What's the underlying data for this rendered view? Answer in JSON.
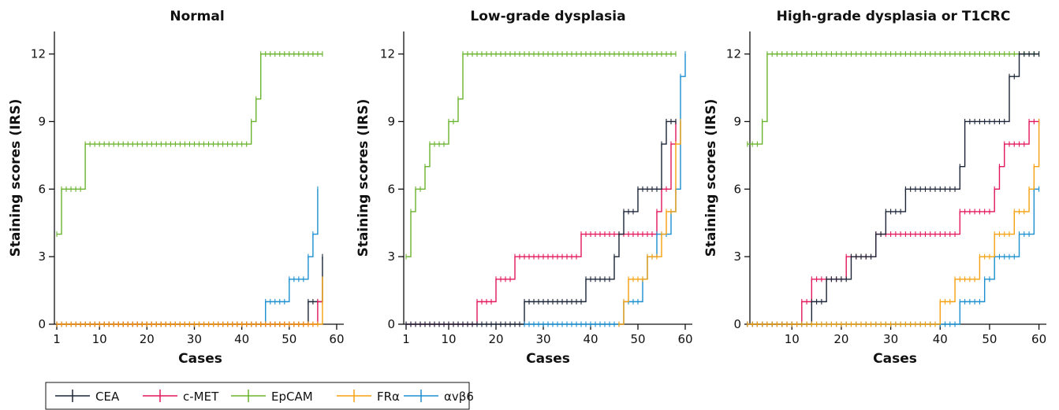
{
  "legend": {
    "placement": "bottom-left",
    "entries": [
      {
        "label": "CEA",
        "color": "#1b2537"
      },
      {
        "label": "c-MET",
        "color": "#e2175c"
      },
      {
        "label": "EpCAM",
        "color": "#6ab32e"
      },
      {
        "label": "FRα",
        "color": "#f5a00f"
      },
      {
        "label": "αvβ6",
        "color": "#1b8fd0"
      }
    ]
  },
  "chart_data": [
    {
      "type": "line",
      "title": "Normal",
      "xlabel": "Cases",
      "ylabel": "Staining scores (IRS)",
      "xlim": [
        0.5,
        61.5
      ],
      "ylim": [
        0,
        13
      ],
      "xticks": [
        1,
        10,
        20,
        30,
        40,
        50,
        60
      ],
      "yticks": [
        0,
        3,
        6,
        9,
        12
      ],
      "grid": false,
      "series": [
        {
          "name": "EpCAM",
          "color": "#6ab32e",
          "x_start": 1,
          "values": [
            4,
            6,
            6,
            6,
            6,
            6,
            8,
            8,
            8,
            8,
            8,
            8,
            8,
            8,
            8,
            8,
            8,
            8,
            8,
            8,
            8,
            8,
            8,
            8,
            8,
            8,
            8,
            8,
            8,
            8,
            8,
            8,
            8,
            8,
            8,
            8,
            8,
            8,
            8,
            8,
            8,
            9,
            10,
            12,
            12,
            12,
            12,
            12,
            12,
            12,
            12,
            12,
            12,
            12,
            12,
            12,
            12
          ]
        },
        {
          "name": "αvβ6",
          "color": "#1b8fd0",
          "x_start": 1,
          "values": [
            0,
            0,
            0,
            0,
            0,
            0,
            0,
            0,
            0,
            0,
            0,
            0,
            0,
            0,
            0,
            0,
            0,
            0,
            0,
            0,
            0,
            0,
            0,
            0,
            0,
            0,
            0,
            0,
            0,
            0,
            0,
            0,
            0,
            0,
            0,
            0,
            0,
            0,
            0,
            0,
            0,
            0,
            0,
            0,
            1,
            1,
            1,
            1,
            1,
            2,
            2,
            2,
            2,
            3,
            4,
            6
          ]
        },
        {
          "name": "CEA",
          "color": "#1b2537",
          "x_start": 1,
          "values": [
            0,
            0,
            0,
            0,
            0,
            0,
            0,
            0,
            0,
            0,
            0,
            0,
            0,
            0,
            0,
            0,
            0,
            0,
            0,
            0,
            0,
            0,
            0,
            0,
            0,
            0,
            0,
            0,
            0,
            0,
            0,
            0,
            0,
            0,
            0,
            0,
            0,
            0,
            0,
            0,
            0,
            0,
            0,
            0,
            0,
            0,
            0,
            0,
            0,
            0,
            0,
            0,
            0,
            1,
            1,
            1,
            3
          ]
        },
        {
          "name": "c-MET",
          "color": "#e2175c",
          "x_start": 1,
          "values": [
            0,
            0,
            0,
            0,
            0,
            0,
            0,
            0,
            0,
            0,
            0,
            0,
            0,
            0,
            0,
            0,
            0,
            0,
            0,
            0,
            0,
            0,
            0,
            0,
            0,
            0,
            0,
            0,
            0,
            0,
            0,
            0,
            0,
            0,
            0,
            0,
            0,
            0,
            0,
            0,
            0,
            0,
            0,
            0,
            0,
            0,
            0,
            0,
            0,
            0,
            0,
            0,
            0,
            0,
            0,
            1,
            1
          ]
        },
        {
          "name": "FRα",
          "color": "#f5a00f",
          "x_start": 1,
          "values": [
            0,
            0,
            0,
            0,
            0,
            0,
            0,
            0,
            0,
            0,
            0,
            0,
            0,
            0,
            0,
            0,
            0,
            0,
            0,
            0,
            0,
            0,
            0,
            0,
            0,
            0,
            0,
            0,
            0,
            0,
            0,
            0,
            0,
            0,
            0,
            0,
            0,
            0,
            0,
            0,
            0,
            0,
            0,
            0,
            0,
            0,
            0,
            0,
            0,
            0,
            0,
            0,
            0,
            0,
            0,
            0,
            2
          ]
        }
      ]
    },
    {
      "type": "line",
      "title": "Low-grade dysplasia",
      "xlabel": "Cases",
      "ylabel": "Staining scores (IRS)",
      "xlim": [
        0.5,
        61.5
      ],
      "ylim": [
        0,
        13
      ],
      "xticks": [
        1,
        10,
        20,
        30,
        40,
        50,
        60
      ],
      "yticks": [
        0,
        3,
        6,
        9,
        12
      ],
      "grid": false,
      "series": [
        {
          "name": "EpCAM",
          "color": "#6ab32e",
          "x_start": 1,
          "values": [
            3,
            5,
            6,
            6,
            7,
            8,
            8,
            8,
            8,
            9,
            9,
            10,
            12,
            12,
            12,
            12,
            12,
            12,
            12,
            12,
            12,
            12,
            12,
            12,
            12,
            12,
            12,
            12,
            12,
            12,
            12,
            12,
            12,
            12,
            12,
            12,
            12,
            12,
            12,
            12,
            12,
            12,
            12,
            12,
            12,
            12,
            12,
            12,
            12,
            12,
            12,
            12,
            12,
            12,
            12,
            12,
            12,
            12
          ]
        },
        {
          "name": "c-MET",
          "color": "#e2175c",
          "x_start": 1,
          "values": [
            0,
            0,
            0,
            0,
            0,
            0,
            0,
            0,
            0,
            0,
            0,
            0,
            0,
            0,
            0,
            1,
            1,
            1,
            1,
            2,
            2,
            2,
            2,
            3,
            3,
            3,
            3,
            3,
            3,
            3,
            3,
            3,
            3,
            3,
            3,
            3,
            3,
            4,
            4,
            4,
            4,
            4,
            4,
            4,
            4,
            4,
            4,
            4,
            4,
            4,
            4,
            4,
            4,
            5,
            6,
            6,
            8,
            9
          ]
        },
        {
          "name": "CEA",
          "color": "#1b2537",
          "x_start": 1,
          "values": [
            0,
            0,
            0,
            0,
            0,
            0,
            0,
            0,
            0,
            0,
            0,
            0,
            0,
            0,
            0,
            0,
            0,
            0,
            0,
            0,
            0,
            0,
            0,
            0,
            0,
            1,
            1,
            1,
            1,
            1,
            1,
            1,
            1,
            1,
            1,
            1,
            1,
            1,
            2,
            2,
            2,
            2,
            2,
            2,
            3,
            4,
            5,
            5,
            5,
            6,
            6,
            6,
            6,
            6,
            8,
            9,
            9,
            9
          ]
        },
        {
          "name": "αvβ6",
          "color": "#1b8fd0",
          "x_start": 26,
          "values": [
            0,
            0,
            0,
            0,
            0,
            0,
            0,
            0,
            0,
            0,
            0,
            0,
            0,
            0,
            0,
            0,
            0,
            0,
            0,
            0,
            0,
            1,
            1,
            1,
            1,
            2,
            3,
            3,
            4,
            4,
            4,
            5,
            6,
            11,
            12
          ]
        },
        {
          "name": "FRα",
          "color": "#f5a00f",
          "x_start": 46,
          "values": [
            0,
            1,
            2,
            2,
            2,
            2,
            3,
            3,
            3,
            4,
            5,
            5,
            8,
            9
          ]
        }
      ]
    },
    {
      "type": "line",
      "title": "High-grade dysplasia or T1CRC",
      "xlabel": "Cases",
      "ylabel": "Staining scores (IRS)",
      "xlim": [
        1.5,
        61.5
      ],
      "ylim": [
        0,
        13
      ],
      "xticks": [
        10,
        20,
        30,
        40,
        50,
        60
      ],
      "yticks": [
        0,
        3,
        6,
        9,
        12
      ],
      "grid": false,
      "series": [
        {
          "name": "EpCAM",
          "color": "#6ab32e",
          "x_start": 1,
          "values": [
            8,
            8,
            8,
            9,
            12,
            12,
            12,
            12,
            12,
            12,
            12,
            12,
            12,
            12,
            12,
            12,
            12,
            12,
            12,
            12,
            12,
            12,
            12,
            12,
            12,
            12,
            12,
            12,
            12,
            12,
            12,
            12,
            12,
            12,
            12,
            12,
            12,
            12,
            12,
            12,
            12,
            12,
            12,
            12,
            12,
            12,
            12,
            12,
            12,
            12,
            12,
            12,
            12,
            12,
            12,
            12,
            12,
            12,
            12,
            12
          ]
        },
        {
          "name": "c-MET",
          "color": "#e2175c",
          "x_start": 1,
          "values": [
            0,
            0,
            0,
            0,
            0,
            0,
            0,
            0,
            0,
            0,
            0,
            1,
            1,
            2,
            2,
            2,
            2,
            2,
            2,
            2,
            3,
            3,
            3,
            3,
            3,
            3,
            4,
            4,
            4,
            4,
            4,
            4,
            4,
            4,
            4,
            4,
            4,
            4,
            4,
            4,
            4,
            4,
            4,
            5,
            5,
            5,
            5,
            5,
            5,
            5,
            6,
            7,
            8,
            8,
            8,
            8,
            8,
            9,
            9,
            9
          ]
        },
        {
          "name": "CEA",
          "color": "#1b2537",
          "x_start": 1,
          "values": [
            0,
            0,
            0,
            0,
            0,
            0,
            0,
            0,
            0,
            0,
            0,
            0,
            0,
            1,
            1,
            1,
            2,
            2,
            2,
            2,
            2,
            3,
            3,
            3,
            3,
            3,
            4,
            4,
            5,
            5,
            5,
            5,
            6,
            6,
            6,
            6,
            6,
            6,
            6,
            6,
            6,
            6,
            6,
            7,
            9,
            9,
            9,
            9,
            9,
            9,
            9,
            9,
            9,
            11,
            11,
            12,
            12,
            12,
            12,
            12
          ]
        },
        {
          "name": "αvβ6",
          "color": "#1b8fd0",
          "x_start": 1,
          "values": [
            0,
            0,
            0,
            0,
            0,
            0,
            0,
            0,
            0,
            0,
            0,
            0,
            0,
            0,
            0,
            0,
            0,
            0,
            0,
            0,
            0,
            0,
            0,
            0,
            0,
            0,
            0,
            0,
            0,
            0,
            0,
            0,
            0,
            0,
            0,
            0,
            0,
            0,
            0,
            0,
            0,
            0,
            0,
            1,
            1,
            1,
            1,
            1,
            2,
            2,
            3,
            3,
            3,
            3,
            3,
            4,
            4,
            4,
            6,
            6
          ]
        },
        {
          "name": "FRα",
          "color": "#f5a00f",
          "x_start": 1,
          "values": [
            0,
            0,
            0,
            0,
            0,
            0,
            0,
            0,
            0,
            0,
            0,
            0,
            0,
            0,
            0,
            0,
            0,
            0,
            0,
            0,
            0,
            0,
            0,
            0,
            0,
            0,
            0,
            0,
            0,
            0,
            0,
            0,
            0,
            0,
            0,
            0,
            0,
            0,
            0,
            1,
            1,
            1,
            2,
            2,
            2,
            2,
            2,
            3,
            3,
            3,
            4,
            4,
            4,
            4,
            5,
            5,
            5,
            6,
            7,
            9
          ]
        }
      ]
    }
  ]
}
